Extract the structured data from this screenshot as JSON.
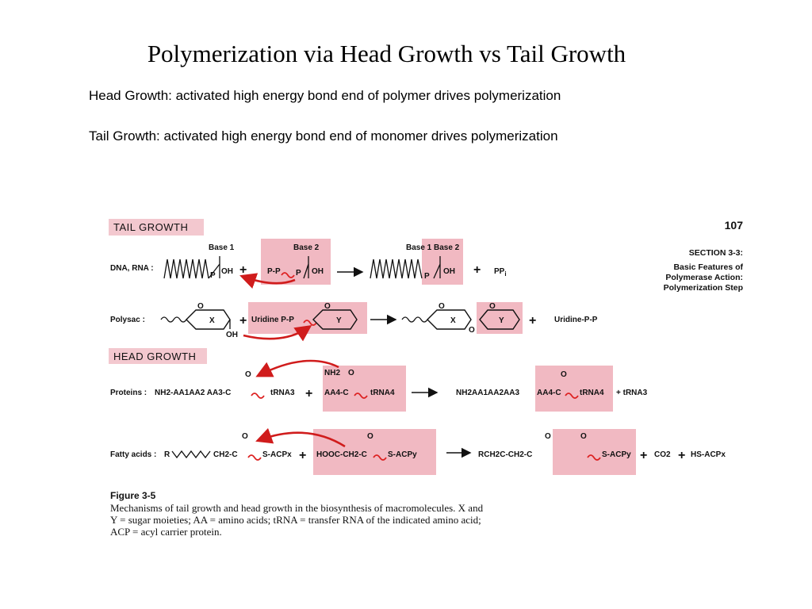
{
  "slide": {
    "title": "Polymerization via Head Growth vs Tail Growth",
    "line1": "Head Growth: activated high energy bond end of polymer drives polymerization",
    "line2": "Tail Growth: activated high energy bond end of monomer drives polymerization"
  },
  "figure": {
    "page_number": "107",
    "section": [
      "SECTION 3-3:",
      "Basic Features of",
      "Polymerase Action:",
      "Polymerization Step"
    ],
    "tail_header": "TAIL GROWTH",
    "head_header": "HEAD GROWTH",
    "colors": {
      "highlight": "#f1b9c2",
      "arrow": "#d01c1c",
      "header_bg": "#f3c8cf"
    },
    "dna": {
      "label": "DNA, RNA :",
      "base1": "Base 1",
      "base2": "Base 2",
      "p": "P",
      "oh": "OH",
      "pp": "P-P",
      "plus": "+",
      "ppi": "PP",
      "ppi_sub": "i"
    },
    "polysac": {
      "label": "Polysac :",
      "x": "X",
      "y": "Y",
      "o": "O",
      "oh": "OH",
      "udp": "Uridine P-P",
      "udp_product": "Uridine-P-P"
    },
    "proteins": {
      "label": "Proteins :",
      "left": "NH2-AA1AA2 AA3-C",
      "o": "O",
      "trna3": "tRNA3",
      "nh2": "NH2",
      "aa4": "AA4-C",
      "trna4": "tRNA4",
      "product": "NH2AA1AA2AA3",
      "product_aa4": "AA4-C",
      "product_trna": "tRNA4",
      "side": "+ tRNA3"
    },
    "fatty": {
      "label": "Fatty acids :",
      "r": "R",
      "ch2": "CH2-C",
      "sacpx": "S-ACPx",
      "hooc": "HOOC-CH2-C",
      "sacpy": "S-ACPy",
      "product": "RCH2C-CH2-C",
      "product_sacp": "S-ACPy",
      "co2": "CO2",
      "hsacp": "HS-ACPx"
    },
    "caption": {
      "heading": "Figure 3-5",
      "lines": [
        "Mechanisms of tail growth and head growth in the biosynthesis of macromolecules. X and",
        "Y = sugar moieties; AA = amino acids; tRNA = transfer RNA of the indicated amino acid;",
        "ACP = acyl carrier protein."
      ]
    }
  }
}
